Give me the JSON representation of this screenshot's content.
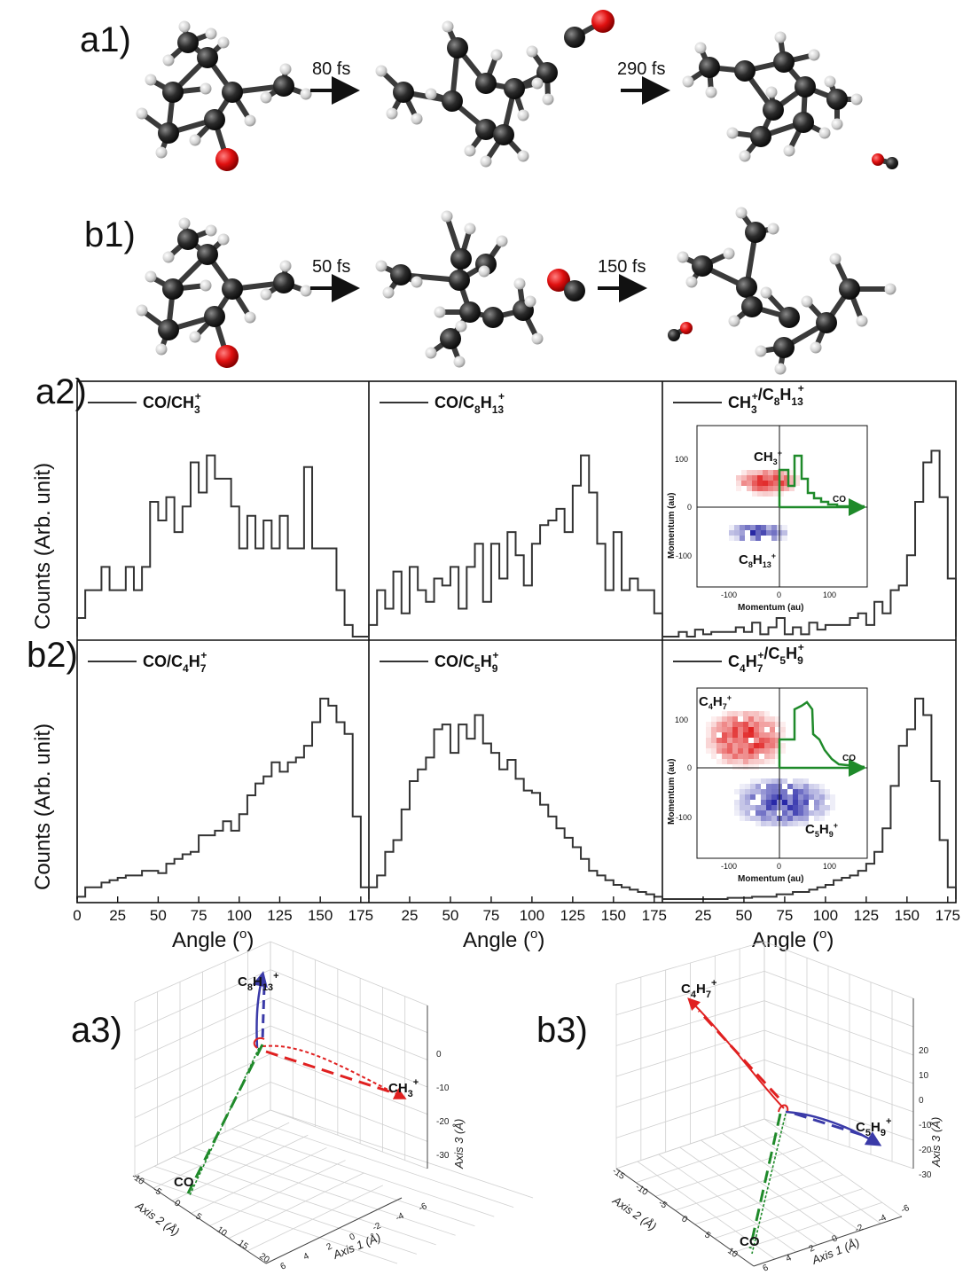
{
  "panels": {
    "a1": "a1)",
    "b1": "b1)",
    "a2": "a2)",
    "b2": "b2)",
    "a3": "a3)",
    "b3": "b3)"
  },
  "reactions": {
    "a1_step1": "80 fs",
    "a1_step2": "290 fs",
    "b1_step1": "50 fs",
    "b1_step2": "150 fs"
  },
  "chart_data": [
    {
      "type": "bar",
      "panel": "a2",
      "column": 1,
      "legend": "CO/CH3+",
      "x": [
        0,
        5,
        10,
        15,
        20,
        25,
        30,
        35,
        40,
        45,
        50,
        55,
        60,
        65,
        70,
        75,
        80,
        85,
        90,
        95,
        100,
        105,
        110,
        115,
        120,
        125,
        130,
        135,
        140,
        145,
        150,
        155,
        160,
        165,
        170,
        175
      ],
      "values": [
        0.08,
        0.2,
        0.2,
        0.3,
        0.2,
        0.2,
        0.3,
        0.2,
        0.3,
        0.58,
        0.5,
        0.6,
        0.45,
        0.56,
        0.75,
        0.62,
        0.78,
        0.68,
        0.68,
        0.56,
        0.38,
        0.52,
        0.38,
        0.5,
        0.38,
        0.52,
        0.38,
        0.38,
        0.73,
        0.38,
        0.38,
        0.38,
        0.2,
        0.05,
        0,
        0
      ]
    },
    {
      "type": "bar",
      "panel": "a2",
      "column": 2,
      "legend": "CO/C8H13+",
      "x": [
        0,
        5,
        10,
        15,
        20,
        25,
        30,
        35,
        40,
        45,
        50,
        55,
        60,
        65,
        70,
        75,
        80,
        85,
        90,
        95,
        100,
        105,
        110,
        115,
        120,
        125,
        130,
        135,
        140,
        145,
        150,
        155,
        160,
        165,
        170,
        175
      ],
      "values": [
        0.05,
        0.2,
        0.12,
        0.28,
        0.1,
        0.3,
        0.2,
        0.15,
        0.25,
        0.22,
        0.3,
        0.12,
        0.3,
        0.4,
        0.15,
        0.4,
        0.25,
        0.45,
        0.35,
        0.22,
        0.4,
        0.48,
        0.5,
        0.55,
        0.45,
        0.65,
        0.78,
        0.62,
        0.4,
        0.2,
        0.45,
        0.2,
        0.25,
        0.2,
        0.2,
        0.1
      ]
    },
    {
      "type": "bar",
      "panel": "a2",
      "column": 3,
      "legend": "CH3+/C8H13+",
      "x": [
        0,
        5,
        10,
        15,
        20,
        25,
        30,
        35,
        40,
        45,
        50,
        55,
        60,
        65,
        70,
        75,
        80,
        85,
        90,
        95,
        100,
        105,
        110,
        115,
        120,
        125,
        130,
        135,
        140,
        145,
        150,
        155,
        160,
        165,
        170,
        175
      ],
      "values": [
        0,
        0,
        0.02,
        0,
        0.03,
        0.01,
        0.02,
        0.02,
        0.02,
        0.04,
        0.02,
        0.06,
        0.01,
        0.04,
        0.08,
        0.01,
        0.04,
        0.01,
        0.06,
        0.03,
        0.05,
        0.05,
        0.05,
        0.08,
        0.1,
        0.05,
        0.15,
        0.1,
        0.2,
        0.22,
        0.35,
        0.58,
        0.75,
        0.8,
        0.6,
        0.25
      ]
    },
    {
      "type": "bar",
      "panel": "b2",
      "column": 1,
      "legend": "CO/C4H7+",
      "x": [
        0,
        5,
        10,
        15,
        20,
        25,
        30,
        35,
        40,
        45,
        50,
        55,
        60,
        65,
        70,
        75,
        80,
        85,
        90,
        95,
        100,
        105,
        110,
        115,
        120,
        125,
        130,
        135,
        140,
        145,
        150,
        155,
        160,
        165,
        170,
        175
      ],
      "values": [
        0.01,
        0.05,
        0.05,
        0.07,
        0.08,
        0.09,
        0.1,
        0.1,
        0.12,
        0.12,
        0.11,
        0.15,
        0.17,
        0.19,
        0.2,
        0.27,
        0.27,
        0.29,
        0.33,
        0.29,
        0.36,
        0.44,
        0.49,
        0.52,
        0.58,
        0.54,
        0.58,
        0.6,
        0.65,
        0.75,
        0.85,
        0.82,
        0.75,
        0.7,
        0.35,
        0.05
      ]
    },
    {
      "type": "bar",
      "panel": "b2",
      "column": 2,
      "legend": "CO/C5H9+",
      "x": [
        0,
        5,
        10,
        15,
        20,
        25,
        30,
        35,
        40,
        45,
        50,
        55,
        60,
        65,
        70,
        75,
        80,
        85,
        90,
        95,
        100,
        105,
        110,
        115,
        120,
        125,
        130,
        135,
        140,
        145,
        150,
        155,
        160,
        165,
        170,
        175
      ],
      "values": [
        0.05,
        0.1,
        0.2,
        0.25,
        0.38,
        0.5,
        0.55,
        0.6,
        0.72,
        0.74,
        0.62,
        0.74,
        0.68,
        0.78,
        0.66,
        0.62,
        0.55,
        0.59,
        0.51,
        0.46,
        0.45,
        0.4,
        0.35,
        0.3,
        0.26,
        0.22,
        0.17,
        0.12,
        0.1,
        0.08,
        0.06,
        0.05,
        0.04,
        0.03,
        0.02,
        0.01
      ]
    },
    {
      "type": "bar",
      "panel": "b2",
      "column": 3,
      "legend": "C4H7+/C5H9+",
      "x": [
        0,
        5,
        10,
        15,
        20,
        25,
        30,
        35,
        40,
        45,
        50,
        55,
        60,
        65,
        70,
        75,
        80,
        85,
        90,
        95,
        100,
        105,
        110,
        115,
        120,
        125,
        130,
        135,
        140,
        145,
        150,
        155,
        160,
        165,
        170,
        175
      ],
      "values": [
        0,
        0,
        0,
        0,
        0,
        0,
        0,
        0,
        0.005,
        0.005,
        0.005,
        0.01,
        0.01,
        0.01,
        0.02,
        0.02,
        0.03,
        0.03,
        0.04,
        0.05,
        0.06,
        0.08,
        0.09,
        0.1,
        0.12,
        0.15,
        0.2,
        0.3,
        0.48,
        0.65,
        0.72,
        0.85,
        0.78,
        0.5,
        0.25,
        0.05
      ]
    }
  ],
  "axes": {
    "xlabel": "Angle (",
    "xlabel_unit": "o",
    "xlabel_end": ")",
    "ylabel": "Counts (Arb. unit)",
    "xticks_col1": [
      "0",
      "25",
      "50",
      "75",
      "100",
      "125",
      "150",
      "175"
    ],
    "xticks_col2": [
      "25",
      "50",
      "75",
      "100",
      "125",
      "150",
      "175"
    ],
    "xticks_col3": [
      "25",
      "50",
      "75",
      "100",
      "125",
      "150",
      "175"
    ]
  },
  "insets": {
    "a": {
      "ylabel": "Momentum (au)",
      "xlabel": "Momentum (au)",
      "yticks": [
        "100",
        "0",
        "-100"
      ],
      "xticks": [
        "-100",
        "0",
        "100"
      ],
      "frag_top": "CH3+",
      "frag_bottom": "C8H13+",
      "co": "CO"
    },
    "b": {
      "ylabel": "Momentum (au)",
      "xlabel": "Momentum (au)",
      "yticks": [
        "100",
        "0",
        "-100"
      ],
      "xticks": [
        "-100",
        "0",
        "100"
      ],
      "frag_top": "C4H7+",
      "frag_bottom": "C5H9+",
      "co": "CO"
    }
  },
  "plots3d": {
    "a3": {
      "axis1": "Axis 1 (Å)",
      "axis2": "Axis 2 (Å)",
      "axis3": "Axis 3 (Å)",
      "z_ticks": [
        "0",
        "-10",
        "-20",
        "-30"
      ],
      "y_ticks": [
        "-10",
        "-5",
        "0",
        "5",
        "10",
        "15",
        "20"
      ],
      "x_ticks": [
        "6",
        "4",
        "2",
        "0",
        "-2",
        "-4",
        "-6"
      ],
      "labels": [
        "C8H13+",
        "CH3+",
        "CO"
      ]
    },
    "b3": {
      "axis1": "Axis 1 (Å)",
      "axis2": "Axis 2 (Å)",
      "axis3": "Axis 3 (Å)",
      "z_ticks": [
        "20",
        "10",
        "0",
        "-10",
        "-20",
        "-30"
      ],
      "y_ticks": [
        "-15",
        "-10",
        "-5",
        "0",
        "5",
        "10"
      ],
      "x_ticks": [
        "6",
        "4",
        "2",
        "0",
        "-2",
        "-4",
        "-6"
      ],
      "labels": [
        "C4H7+",
        "C5H9+",
        "CO"
      ]
    },
    "colors": {
      "blue": "#3a3aa8",
      "red": "#e02020",
      "green": "#1f8a2a"
    }
  }
}
